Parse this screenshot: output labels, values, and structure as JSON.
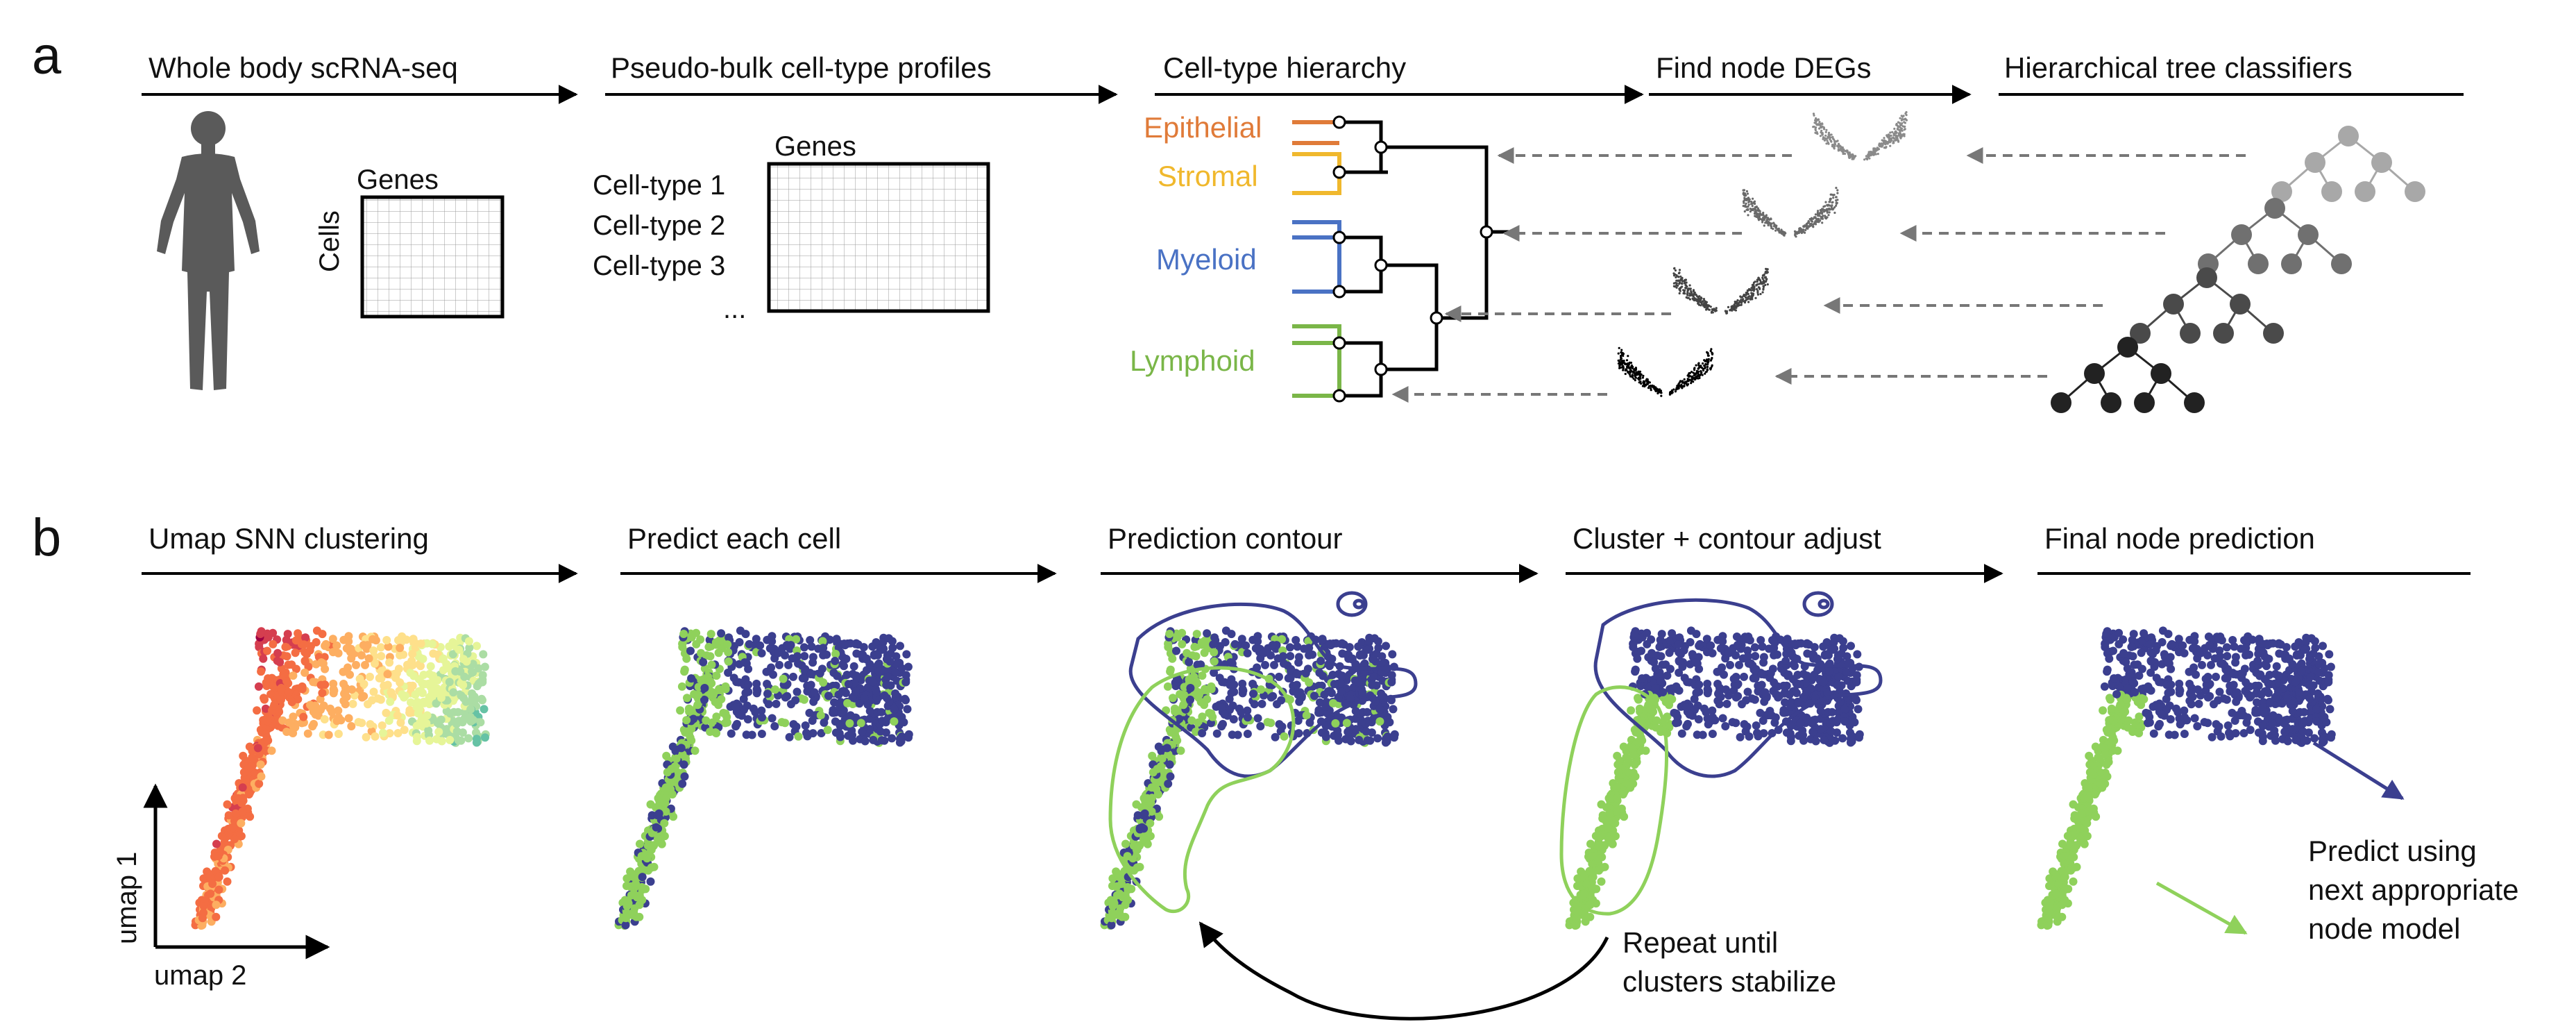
{
  "panel_a": {
    "letter": "a",
    "stages": [
      "Whole body scRNA-seq",
      "Pseudo-bulk cell-type profiles",
      "Cell-type hierarchy",
      "Find node DEGs",
      "Hierarchical tree classifiers"
    ],
    "cells_matrix": {
      "col_label": "Genes",
      "row_label": "Cells"
    },
    "profile_matrix": {
      "col_label": "Genes",
      "rows": [
        "Cell-type 1",
        "Cell-type 2",
        "Cell-type 3",
        "..."
      ]
    },
    "lineages": [
      {
        "name": "Epithelial",
        "color": "#e07b39"
      },
      {
        "name": "Stromal",
        "color": "#f0b82d"
      },
      {
        "name": "Myeloid",
        "color": "#4a72c4"
      },
      {
        "name": "Lymphoid",
        "color": "#7ab648"
      }
    ],
    "classifier_shades": [
      "#a8a8a8",
      "#707070",
      "#4a4a4a",
      "#222222"
    ],
    "volcano_shades": [
      "#8a8a8a",
      "#6a6a6a",
      "#444444",
      "#000000"
    ]
  },
  "panel_b": {
    "letter": "b",
    "stages": [
      "Umap SNN clustering",
      "Predict each cell",
      "Prediction contour",
      "Cluster + contour adjust",
      "Final node prediction"
    ],
    "axes": {
      "y": "umap 1",
      "x": "umap 2"
    },
    "repeat_note": [
      "Repeat until",
      "clusters stabilize"
    ],
    "predict_note": [
      "Predict using",
      "next appropriate",
      "node model"
    ],
    "colors": {
      "class_a": "#3b3f8f",
      "class_b": "#8fd15b"
    },
    "cluster_palette": [
      "#9e0142",
      "#d53e4f",
      "#f46d43",
      "#fdae61",
      "#fee08b",
      "#e6f598",
      "#abdda4",
      "#66c2a5",
      "#3288bd"
    ]
  }
}
